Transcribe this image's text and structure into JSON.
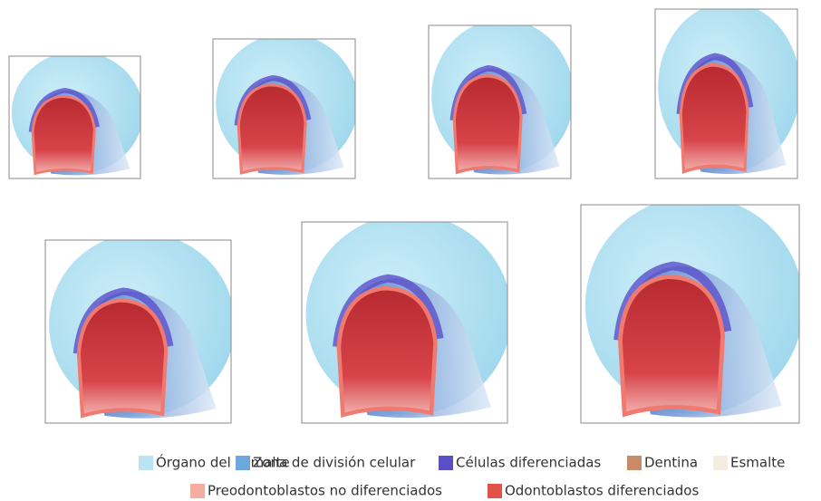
{
  "legend": [
    {
      "label": "Órgano del esmalte",
      "color": "#b9e4f3"
    },
    {
      "label": "Zona de división celular",
      "color": "#6ea6e0"
    },
    {
      "label": "Células diferenciadas",
      "color": "#5a4fc9"
    },
    {
      "label": "Dentina",
      "color": "#c98a67"
    },
    {
      "label": "Esmalte",
      "color": "#f4ede2"
    },
    {
      "label": "Preodontoblastos no diferenciados",
      "color": "#f4aca0"
    },
    {
      "label": "Odontoblastos diferenciados",
      "color": "#e2524a"
    }
  ]
}
